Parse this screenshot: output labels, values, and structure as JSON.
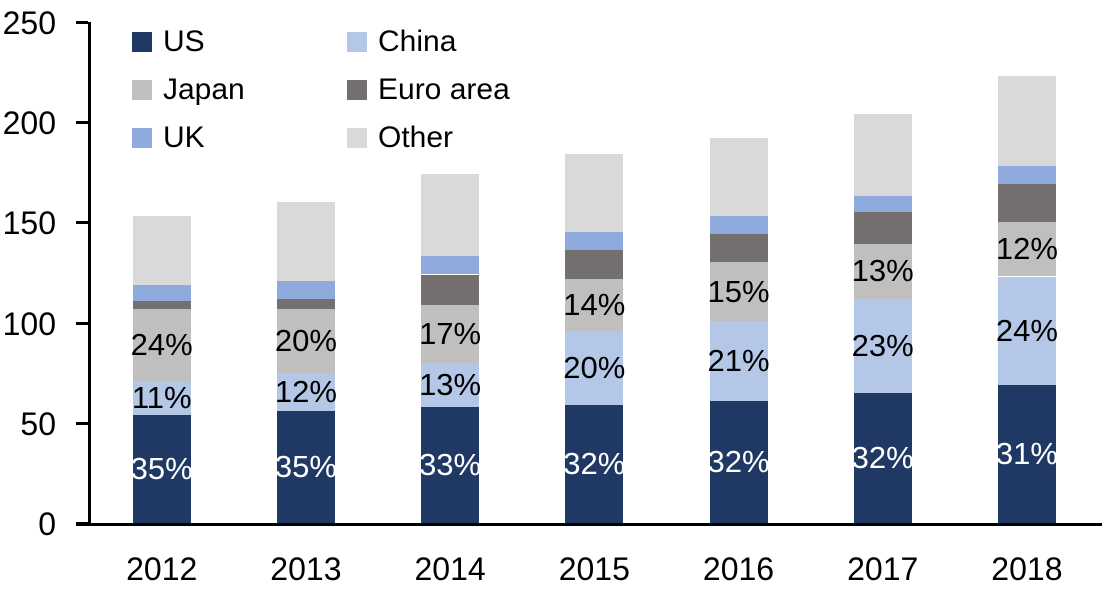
{
  "background": "#FFFFFF",
  "axis_color": "#000000",
  "text_color": "#000000",
  "chart_data": {
    "type": "bar",
    "stacked": true,
    "title": "",
    "xlabel": "",
    "ylabel": "",
    "categories": [
      "2012",
      "2013",
      "2014",
      "2015",
      "2016",
      "2017",
      "2018"
    ],
    "series": [
      {
        "name": "US",
        "color": "#203864",
        "values": [
          54,
          56,
          58,
          59,
          61,
          65,
          69
        ],
        "segment_labels": [
          "35%",
          "35%",
          "33%",
          "32%",
          "32%",
          "32%",
          "31%"
        ],
        "label_color": "#FFFFFF"
      },
      {
        "name": "China",
        "color": "#B4C7E7",
        "values": [
          17,
          19,
          22,
          37,
          40,
          47,
          54
        ],
        "segment_labels": [
          "11%",
          "12%",
          "13%",
          "20%",
          "21%",
          "23%",
          "24%"
        ],
        "label_color": "#000000"
      },
      {
        "name": "Japan",
        "color": "#BFBFBF",
        "values": [
          36,
          32,
          29,
          26,
          29,
          27,
          27
        ],
        "segment_labels": [
          "24%",
          "20%",
          "17%",
          "14%",
          "15%",
          "13%",
          "12%"
        ],
        "label_color": "#000000"
      },
      {
        "name": "Euro area",
        "color": "#757070",
        "values": [
          4,
          5,
          15,
          14,
          14,
          16,
          19
        ]
      },
      {
        "name": "UK",
        "color": "#8FAADC",
        "values": [
          8,
          9,
          9,
          9,
          9,
          8,
          9
        ]
      },
      {
        "name": "Other",
        "color": "#D9D9D9",
        "values": [
          34,
          39,
          41,
          39,
          39,
          41,
          45
        ]
      }
    ],
    "totals": [
      153,
      160,
      174,
      184,
      192,
      204,
      223
    ],
    "ylim": [
      0,
      250
    ],
    "yticks": [
      0,
      50,
      100,
      150,
      200,
      250
    ],
    "grid": false,
    "legend_position": "top-left",
    "legend_columns": [
      [
        "US",
        "Japan",
        "UK"
      ],
      [
        "China",
        "Euro area",
        "Other"
      ]
    ]
  }
}
